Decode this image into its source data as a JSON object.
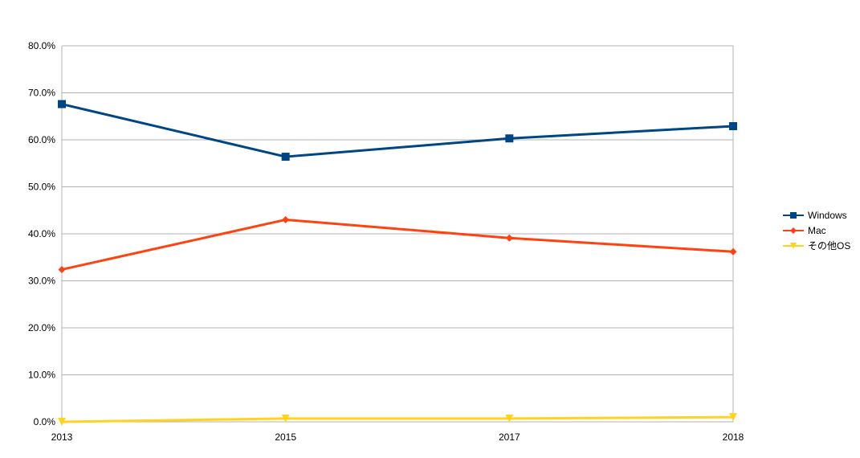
{
  "chart_data": {
    "type": "line",
    "title": "",
    "xlabel": "",
    "ylabel": "",
    "categories": [
      "2013",
      "2015",
      "2017",
      "2018"
    ],
    "y_ticks": [
      "0.0%",
      "10.0%",
      "20.0%",
      "30.0%",
      "40.0%",
      "50.0%",
      "60.0%",
      "70.0%",
      "80.0%"
    ],
    "ylim": [
      0,
      80
    ],
    "y_unit": "%",
    "grid": true,
    "legend_position": "right",
    "series": [
      {
        "name": "Windows",
        "values": [
          67.6,
          56.4,
          60.3,
          62.9
        ],
        "color": "#004586",
        "marker": "square"
      },
      {
        "name": "Mac",
        "values": [
          32.4,
          43.0,
          39.1,
          36.2
        ],
        "color": "#ff420e",
        "marker": "diamond"
      },
      {
        "name": "その他OS",
        "values": [
          0.0,
          0.7,
          0.7,
          1.0
        ],
        "color": "#ffd320",
        "marker": "triangle-down"
      }
    ]
  }
}
